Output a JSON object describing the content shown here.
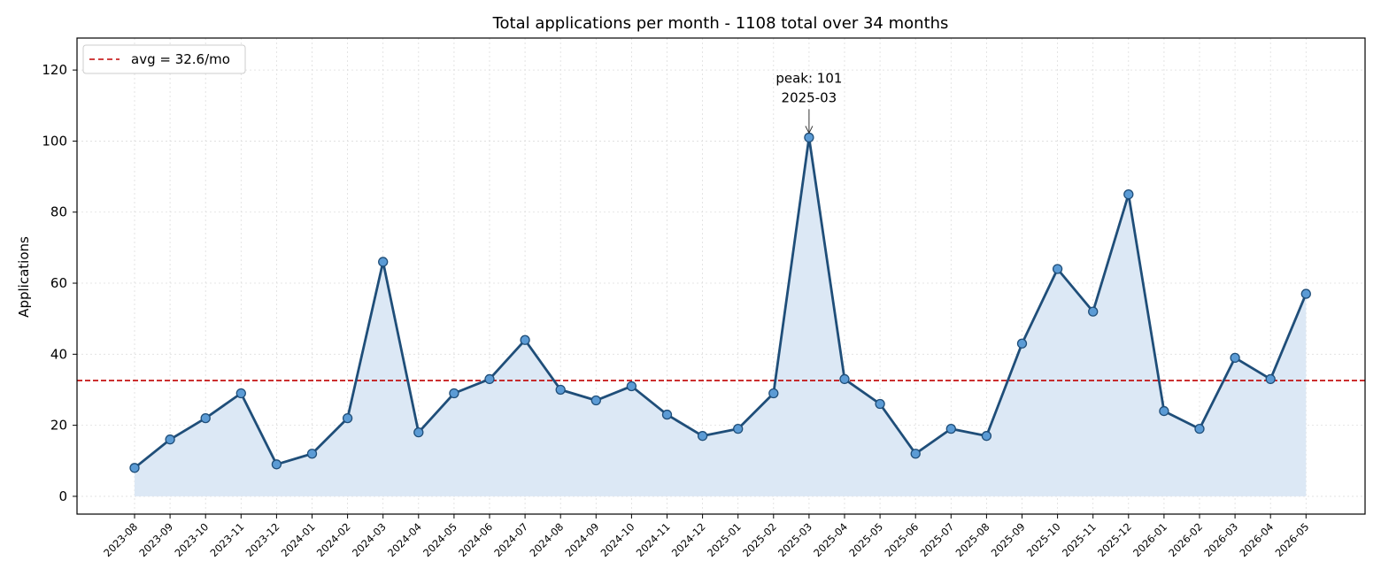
{
  "chart_data": {
    "type": "line",
    "title": "Total applications per month - 1108 total over 34 months",
    "xlabel": "",
    "ylabel": "Applications",
    "ylim": [
      -5,
      129
    ],
    "yticks": [
      0,
      20,
      40,
      60,
      80,
      100,
      120
    ],
    "grid": true,
    "legend_position": "top-left",
    "x": [
      "2023-08",
      "2023-09",
      "2023-10",
      "2023-11",
      "2023-12",
      "2024-01",
      "2024-02",
      "2024-03",
      "2024-04",
      "2024-05",
      "2024-06",
      "2024-07",
      "2024-08",
      "2024-09",
      "2024-10",
      "2024-11",
      "2024-12",
      "2025-01",
      "2025-02",
      "2025-03",
      "2025-04",
      "2025-05",
      "2025-06",
      "2025-07",
      "2025-08",
      "2025-09",
      "2025-10",
      "2025-11",
      "2025-12",
      "2026-01",
      "2026-02",
      "2026-03",
      "2026-04",
      "2026-05"
    ],
    "series": [
      {
        "values": [
          8,
          16,
          22,
          29,
          9,
          12,
          22,
          66,
          18,
          29,
          33,
          44,
          30,
          27,
          31,
          23,
          17,
          19,
          29,
          101,
          33,
          26,
          12,
          19,
          17,
          43,
          64,
          52,
          85,
          24,
          19,
          39,
          33,
          57
        ],
        "line_color": "#1f4e79",
        "marker_color": "#5b9bd5",
        "fill_color": "#dce8f5"
      }
    ],
    "reference_line": {
      "value": 32.6,
      "label": "avg = 32.6/mo",
      "color": "#c00000",
      "style": "dashed"
    },
    "annotation": {
      "text_line1": "peak: 101",
      "text_line2": "2025-03",
      "x": "2025-03",
      "y": 101
    }
  }
}
